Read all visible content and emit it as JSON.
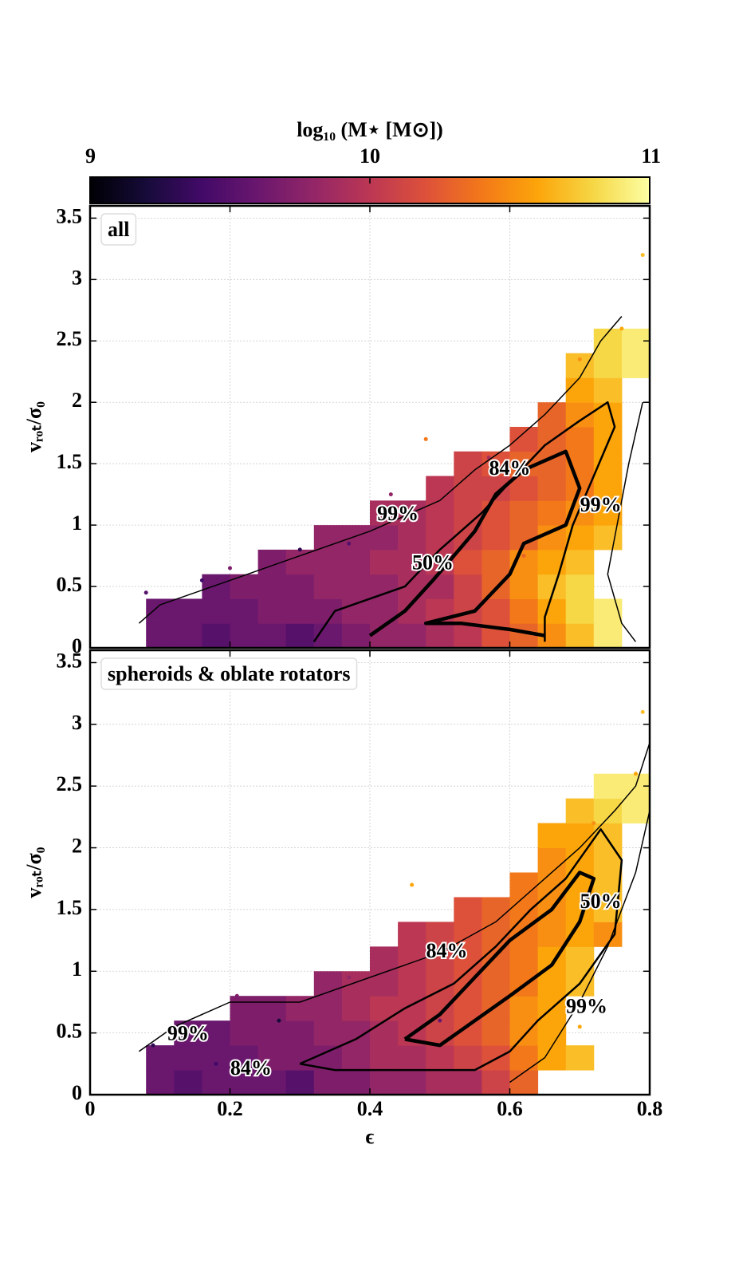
{
  "colorbar": {
    "label": "log₁₀ (M⋆ [M⊙])",
    "lim": [
      9,
      11
    ],
    "ticks": [
      9,
      10,
      11
    ],
    "colormap": "inferno"
  },
  "chart_data": [
    {
      "type": "heatmap",
      "annotation": "all",
      "ylabel": "vᵣₒₜ/σ₀",
      "xlim": [
        0,
        0.8
      ],
      "ylim": [
        0,
        3.6
      ],
      "xticks": [
        0,
        0.2,
        0.4,
        0.6,
        0.8
      ],
      "yticks": [
        0,
        0.5,
        1,
        1.5,
        2,
        2.5,
        3,
        3.5
      ],
      "grid": true,
      "xbins": [
        0,
        0.04,
        0.08,
        0.12,
        0.16,
        0.2,
        0.24,
        0.28,
        0.32,
        0.36,
        0.4,
        0.44,
        0.48,
        0.52,
        0.56,
        0.6,
        0.64,
        0.68,
        0.72,
        0.76,
        0.8
      ],
      "ybins": [
        0,
        0.2,
        0.4,
        0.6,
        0.8,
        1,
        1.2,
        1.4,
        1.6,
        1.8,
        2,
        2.2,
        2.4,
        2.6
      ],
      "z": [
        [
          null,
          null,
          9.6,
          9.6,
          9.5,
          9.6,
          9.6,
          9.5,
          9.6,
          9.7,
          9.8,
          9.8,
          9.9,
          10.0,
          10.2,
          10.3,
          10.5,
          10.7,
          10.9,
          null
        ],
        [
          null,
          null,
          9.6,
          9.6,
          9.6,
          9.6,
          9.7,
          9.7,
          9.7,
          9.8,
          9.8,
          9.9,
          10.0,
          10.1,
          10.2,
          10.4,
          10.6,
          10.8,
          10.9,
          null
        ],
        [
          null,
          null,
          null,
          null,
          9.6,
          9.7,
          9.7,
          9.7,
          9.8,
          9.8,
          9.8,
          9.9,
          9.9,
          10.1,
          10.3,
          10.5,
          10.7,
          10.8,
          null,
          null
        ],
        [
          null,
          null,
          null,
          null,
          null,
          null,
          9.7,
          9.8,
          9.8,
          9.8,
          9.9,
          9.9,
          10.0,
          10.2,
          10.3,
          10.5,
          10.6,
          10.7,
          null,
          null
        ],
        [
          null,
          null,
          null,
          null,
          null,
          null,
          null,
          null,
          9.8,
          9.8,
          9.8,
          9.9,
          10.0,
          10.1,
          10.2,
          10.3,
          10.5,
          10.6,
          10.7,
          null
        ],
        [
          null,
          null,
          null,
          null,
          null,
          null,
          null,
          null,
          null,
          null,
          9.9,
          9.9,
          10.0,
          10.1,
          10.2,
          10.3,
          10.4,
          10.5,
          10.6,
          null
        ],
        [
          null,
          null,
          null,
          null,
          null,
          null,
          null,
          null,
          null,
          null,
          null,
          null,
          10.0,
          10.1,
          10.1,
          10.2,
          10.3,
          10.4,
          10.6,
          null
        ],
        [
          null,
          null,
          null,
          null,
          null,
          null,
          null,
          null,
          null,
          null,
          null,
          null,
          null,
          10.1,
          10.2,
          10.3,
          10.3,
          10.4,
          10.6,
          null
        ],
        [
          null,
          null,
          null,
          null,
          null,
          null,
          null,
          null,
          null,
          null,
          null,
          null,
          null,
          null,
          null,
          10.2,
          10.3,
          10.4,
          10.6,
          null
        ],
        [
          null,
          null,
          null,
          null,
          null,
          null,
          null,
          null,
          null,
          null,
          null,
          null,
          null,
          null,
          null,
          null,
          10.3,
          10.5,
          10.6,
          null
        ],
        [
          null,
          null,
          null,
          null,
          null,
          null,
          null,
          null,
          null,
          null,
          null,
          null,
          null,
          null,
          null,
          null,
          null,
          10.6,
          10.7,
          null
        ],
        [
          null,
          null,
          null,
          null,
          null,
          null,
          null,
          null,
          null,
          null,
          null,
          null,
          null,
          null,
          null,
          null,
          null,
          10.7,
          10.8,
          10.9
        ],
        [
          null,
          null,
          null,
          null,
          null,
          null,
          null,
          null,
          null,
          null,
          null,
          null,
          null,
          null,
          null,
          null,
          null,
          null,
          10.8,
          10.9
        ]
      ],
      "contours": [
        {
          "width": 1.5,
          "x": [
            0.07,
            0.1,
            0.2,
            0.3,
            0.4,
            0.5,
            0.55,
            0.6,
            0.65,
            0.7,
            0.73,
            0.76
          ],
          "y": [
            0.2,
            0.35,
            0.55,
            0.75,
            0.95,
            1.2,
            1.45,
            1.65,
            1.9,
            2.2,
            2.5,
            2.7
          ],
          "labels": [
            {
              "text": "99%",
              "x": 0.44,
              "y": 1.08
            }
          ]
        },
        {
          "width": 1.5,
          "x": [
            0.79,
            0.77,
            0.75,
            0.74,
            0.76,
            0.78
          ],
          "y": [
            2.0,
            1.5,
            0.9,
            0.6,
            0.2,
            0.05
          ],
          "labels": [
            {
              "text": "99%",
              "x": 0.73,
              "y": 1.15
            }
          ]
        },
        {
          "width": 2.5,
          "x": [
            0.32,
            0.35,
            0.45,
            0.5,
            0.56,
            0.6,
            0.65,
            0.7,
            0.74,
            0.75,
            0.72,
            0.69,
            0.67,
            0.65,
            0.65
          ],
          "y": [
            0.05,
            0.3,
            0.5,
            0.8,
            1.1,
            1.35,
            1.65,
            1.85,
            2.0,
            1.8,
            1.4,
            1.0,
            0.6,
            0.25,
            0.05
          ],
          "labels": [
            {
              "text": "84%",
              "x": 0.6,
              "y": 1.45
            }
          ]
        },
        {
          "width": 4.5,
          "x": [
            0.4,
            0.45,
            0.49,
            0.55,
            0.58,
            0.62,
            0.68,
            0.7,
            0.68,
            0.62,
            0.6,
            0.55,
            0.48,
            0.53,
            0.6,
            0.65
          ],
          "y": [
            0.1,
            0.3,
            0.55,
            0.95,
            1.25,
            1.45,
            1.6,
            1.3,
            1.0,
            0.85,
            0.6,
            0.3,
            0.2,
            0.2,
            0.15,
            0.1
          ],
          "labels": [
            {
              "text": "50%",
              "x": 0.49,
              "y": 0.68
            }
          ]
        }
      ],
      "points": {
        "x": [
          0.08,
          0.1,
          0.16,
          0.2,
          0.3,
          0.37,
          0.43,
          0.48,
          0.57,
          0.62,
          0.7,
          0.76,
          0.79
        ],
        "y": [
          0.45,
          0.25,
          0.55,
          0.65,
          0.8,
          0.85,
          1.25,
          1.7,
          1.55,
          0.75,
          2.35,
          2.6,
          3.2
        ],
        "mass": [
          9.5,
          9.6,
          9.4,
          9.7,
          9.3,
          9.5,
          9.8,
          10.4,
          9.9,
          10.3,
          10.5,
          10.6,
          10.7
        ]
      }
    },
    {
      "type": "heatmap",
      "annotation": "spheroids & oblate rotators",
      "ylabel": "vᵣₒₜ/σ₀",
      "xlabel": "ϵ",
      "xlim": [
        0,
        0.8
      ],
      "ylim": [
        0,
        3.6
      ],
      "xticks": [
        0,
        0.2,
        0.4,
        0.6,
        0.8
      ],
      "yticks": [
        0,
        0.5,
        1,
        1.5,
        2,
        2.5,
        3,
        3.5
      ],
      "grid": true,
      "xbins": [
        0,
        0.04,
        0.08,
        0.12,
        0.16,
        0.2,
        0.24,
        0.28,
        0.32,
        0.36,
        0.4,
        0.44,
        0.48,
        0.52,
        0.56,
        0.6,
        0.64,
        0.68,
        0.72,
        0.76,
        0.8
      ],
      "ybins": [
        0,
        0.2,
        0.4,
        0.6,
        0.8,
        1,
        1.2,
        1.4,
        1.6,
        1.8,
        2,
        2.2,
        2.4,
        2.6
      ],
      "z": [
        [
          null,
          null,
          9.6,
          9.5,
          9.6,
          9.6,
          9.6,
          9.5,
          9.7,
          9.7,
          9.8,
          9.8,
          9.9,
          9.9,
          10.1,
          10.3,
          null,
          null,
          null,
          null
        ],
        [
          null,
          null,
          9.6,
          9.6,
          9.6,
          9.6,
          9.7,
          9.7,
          9.7,
          9.8,
          9.9,
          9.9,
          10.0,
          10.1,
          10.2,
          10.4,
          10.6,
          10.7,
          null,
          null
        ],
        [
          null,
          null,
          null,
          9.6,
          9.6,
          9.7,
          9.7,
          9.7,
          9.8,
          9.8,
          9.9,
          10.0,
          10.1,
          10.2,
          10.3,
          10.5,
          10.6,
          null,
          null,
          null
        ],
        [
          null,
          null,
          null,
          null,
          null,
          9.7,
          9.7,
          9.8,
          9.8,
          9.9,
          10.0,
          10.0,
          10.1,
          10.2,
          10.3,
          10.5,
          10.6,
          null,
          null,
          null
        ],
        [
          null,
          null,
          null,
          null,
          null,
          null,
          null,
          null,
          9.8,
          9.9,
          9.9,
          10.0,
          10.1,
          10.2,
          10.3,
          10.4,
          10.6,
          10.7,
          null,
          null
        ],
        [
          null,
          null,
          null,
          null,
          null,
          null,
          null,
          null,
          null,
          null,
          9.9,
          10.0,
          10.1,
          10.2,
          10.3,
          10.4,
          10.6,
          10.7,
          null,
          null
        ],
        [
          null,
          null,
          null,
          null,
          null,
          null,
          null,
          null,
          null,
          null,
          null,
          10.0,
          10.1,
          10.2,
          10.3,
          10.4,
          10.5,
          10.6,
          10.5,
          null
        ],
        [
          null,
          null,
          null,
          null,
          null,
          null,
          null,
          null,
          null,
          null,
          null,
          null,
          null,
          10.2,
          10.3,
          10.4,
          10.5,
          10.6,
          10.7,
          null
        ],
        [
          null,
          null,
          null,
          null,
          null,
          null,
          null,
          null,
          null,
          null,
          null,
          null,
          null,
          null,
          null,
          10.4,
          10.5,
          10.6,
          10.7,
          null
        ],
        [
          null,
          null,
          null,
          null,
          null,
          null,
          null,
          null,
          null,
          null,
          null,
          null,
          null,
          null,
          null,
          null,
          10.5,
          10.6,
          10.7,
          null
        ],
        [
          null,
          null,
          null,
          null,
          null,
          null,
          null,
          null,
          null,
          null,
          null,
          null,
          null,
          null,
          null,
          null,
          10.6,
          10.6,
          10.7,
          null
        ],
        [
          null,
          null,
          null,
          null,
          null,
          null,
          null,
          null,
          null,
          null,
          null,
          null,
          null,
          null,
          null,
          null,
          null,
          10.7,
          10.8,
          10.9
        ],
        [
          null,
          null,
          null,
          null,
          null,
          null,
          null,
          null,
          null,
          null,
          null,
          null,
          null,
          null,
          null,
          null,
          null,
          null,
          10.9,
          10.9
        ]
      ],
      "contours": [
        {
          "width": 1.5,
          "x": [
            0.07,
            0.12,
            0.2,
            0.3,
            0.4,
            0.5,
            0.58,
            0.65,
            0.7,
            0.75,
            0.78,
            0.8
          ],
          "y": [
            0.35,
            0.55,
            0.75,
            0.75,
            0.95,
            1.15,
            1.4,
            1.75,
            2.0,
            2.3,
            2.5,
            2.85
          ],
          "labels": [
            {
              "text": "99%",
              "x": 0.14,
              "y": 0.48
            }
          ]
        },
        {
          "width": 1.5,
          "x": [
            0.8,
            0.78,
            0.74,
            0.7,
            0.65,
            0.6
          ],
          "y": [
            2.3,
            1.8,
            1.2,
            0.75,
            0.3,
            0.1
          ],
          "labels": [
            {
              "text": "99%",
              "x": 0.71,
              "y": 0.7
            }
          ]
        },
        {
          "width": 2.5,
          "x": [
            0.3,
            0.38,
            0.45,
            0.52,
            0.58,
            0.63,
            0.68,
            0.73,
            0.76,
            0.75,
            0.7,
            0.64,
            0.6,
            0.55,
            0.45,
            0.35,
            0.3
          ],
          "y": [
            0.25,
            0.45,
            0.7,
            0.9,
            1.2,
            1.5,
            1.75,
            2.15,
            1.9,
            1.3,
            0.9,
            0.6,
            0.35,
            0.2,
            0.2,
            0.2,
            0.25
          ],
          "labels": [
            {
              "text": "84%",
              "x": 0.51,
              "y": 1.15
            },
            {
              "text": "84%",
              "x": 0.23,
              "y": 0.2
            }
          ]
        },
        {
          "width": 4.5,
          "x": [
            0.45,
            0.5,
            0.55,
            0.6,
            0.66,
            0.7,
            0.72,
            0.7,
            0.66,
            0.6,
            0.55,
            0.5,
            0.45
          ],
          "y": [
            0.45,
            0.65,
            0.95,
            1.25,
            1.5,
            1.8,
            1.75,
            1.4,
            1.05,
            0.8,
            0.6,
            0.4,
            0.45
          ],
          "labels": [
            {
              "text": "50%",
              "x": 0.73,
              "y": 1.55
            }
          ]
        }
      ],
      "points": {
        "x": [
          0.09,
          0.12,
          0.18,
          0.21,
          0.27,
          0.37,
          0.46,
          0.5,
          0.63,
          0.7,
          0.72,
          0.78,
          0.79
        ],
        "y": [
          0.4,
          0.55,
          0.25,
          0.8,
          0.6,
          0.95,
          1.7,
          0.6,
          0.1,
          0.55,
          2.2,
          2.6,
          3.1
        ],
        "mass": [
          9.3,
          9.5,
          9.4,
          9.7,
          9.2,
          9.8,
          10.6,
          9.6,
          10.3,
          10.6,
          10.5,
          10.6,
          10.7
        ]
      }
    }
  ]
}
